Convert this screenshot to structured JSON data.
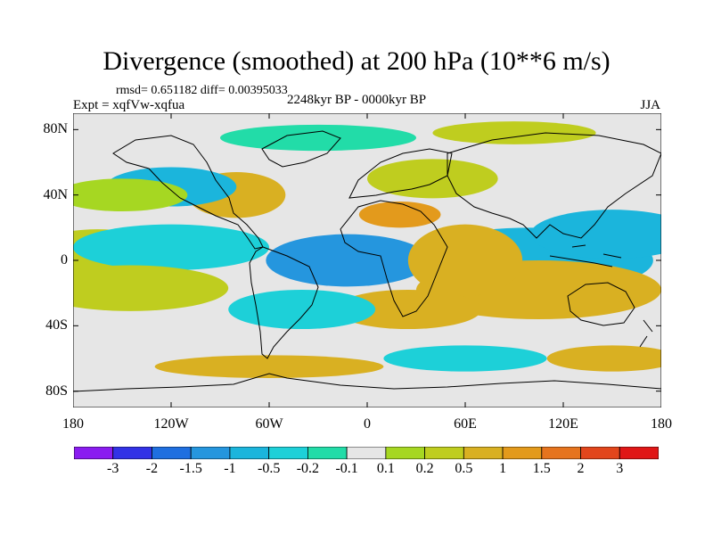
{
  "title": "Divergence (smoothed) at 200 hPa (10**6 m/s)",
  "stats": "rmsd= 0.651182  diff= 0.00395033",
  "experiment": "Expt = xqfVw-xqfua",
  "period": "2248kyr BP - 0000kyr BP",
  "season": "JJA",
  "map": {
    "projection": "cylindrical equidistant",
    "lon_range": [
      -180,
      180
    ],
    "lat_range": [
      -90,
      90
    ],
    "lon_ticks": [
      {
        "value": -180,
        "label": "180"
      },
      {
        "value": -120,
        "label": "120W"
      },
      {
        "value": -60,
        "label": "60W"
      },
      {
        "value": 0,
        "label": "0"
      },
      {
        "value": 60,
        "label": "60E"
      },
      {
        "value": 120,
        "label": "120E"
      },
      {
        "value": 180,
        "label": "180"
      }
    ],
    "lat_ticks": [
      {
        "value": 80,
        "label": "80N"
      },
      {
        "value": 40,
        "label": "40N"
      },
      {
        "value": 0,
        "label": "0"
      },
      {
        "value": -40,
        "label": "40S"
      },
      {
        "value": -80,
        "label": "80S"
      }
    ]
  },
  "colorbar": {
    "colors": [
      "#8a1cf0",
      "#3232e6",
      "#1f6fe0",
      "#2596de",
      "#1bb5dc",
      "#1dd0d8",
      "#22dca8",
      "#e6e6e6",
      "#a6d722",
      "#bfcd1f",
      "#d9b022",
      "#e39a1c",
      "#e6741e",
      "#e2461c",
      "#e01616"
    ],
    "labels": [
      "-3",
      "-2",
      "-1.5",
      "-1",
      "-0.5",
      "-0.2",
      "-0.1",
      "0.1",
      "0.2",
      "0.5",
      "1",
      "1.5",
      "2",
      "3"
    ]
  },
  "field_blobs": [
    {
      "lon": -15,
      "lat": 2,
      "rlon": 25,
      "rlat": 7,
      "level": 0
    },
    {
      "lon": -18,
      "lat": 1,
      "rlon": 35,
      "rlat": 11,
      "level": 1
    },
    {
      "lon": -12,
      "lat": 0,
      "rlon": 50,
      "rlat": 16,
      "level": 3
    },
    {
      "lon": 95,
      "lat": -5,
      "rlon": 28,
      "rlat": 8,
      "level": 0
    },
    {
      "lon": 90,
      "lat": -2,
      "rlon": 45,
      "rlat": 12,
      "level": 2
    },
    {
      "lon": 100,
      "lat": 0,
      "rlon": 75,
      "rlat": 20,
      "level": 4
    },
    {
      "lon": 110,
      "lat": -20,
      "rlon": 50,
      "rlat": 10,
      "level": 13
    },
    {
      "lon": 105,
      "lat": -18,
      "rlon": 75,
      "rlat": 18,
      "level": 10
    },
    {
      "lon": 55,
      "lat": 5,
      "rlon": 20,
      "rlat": 12,
      "level": 13
    },
    {
      "lon": 60,
      "lat": 0,
      "rlon": 35,
      "rlat": 22,
      "level": 10
    },
    {
      "lon": -175,
      "lat": 3,
      "rlon": 30,
      "rlat": 10,
      "level": 12
    },
    {
      "lon": -165,
      "lat": 3,
      "rlon": 45,
      "rlat": 16,
      "level": 9
    },
    {
      "lon": -140,
      "lat": 7,
      "rlon": 30,
      "rlat": 8,
      "level": 3
    },
    {
      "lon": -120,
      "lat": 8,
      "rlon": 60,
      "rlat": 14,
      "level": 5
    },
    {
      "lon": 140,
      "lat": 18,
      "rlon": 30,
      "rlat": 8,
      "level": 2
    },
    {
      "lon": 150,
      "lat": 16,
      "rlon": 50,
      "rlat": 15,
      "level": 4
    },
    {
      "lon": -150,
      "lat": -18,
      "rlon": 45,
      "rlat": 8,
      "level": 12
    },
    {
      "lon": -145,
      "lat": -17,
      "rlon": 60,
      "rlat": 14,
      "level": 9
    },
    {
      "lon": 25,
      "lat": -30,
      "rlon": 45,
      "rlat": 12,
      "level": 10
    },
    {
      "lon": -40,
      "lat": -30,
      "rlon": 45,
      "rlat": 12,
      "level": 5
    },
    {
      "lon": -80,
      "lat": 40,
      "rlon": 30,
      "rlat": 14,
      "level": 10
    },
    {
      "lon": -120,
      "lat": 45,
      "rlon": 40,
      "rlat": 12,
      "level": 4
    },
    {
      "lon": 40,
      "lat": 50,
      "rlon": 40,
      "rlat": 12,
      "level": 9
    },
    {
      "lon": 20,
      "lat": 28,
      "rlon": 25,
      "rlat": 8,
      "level": 11
    },
    {
      "lon": -30,
      "lat": 75,
      "rlon": 60,
      "rlat": 8,
      "level": 6
    },
    {
      "lon": 90,
      "lat": 78,
      "rlon": 50,
      "rlat": 7,
      "level": 9
    },
    {
      "lon": -60,
      "lat": -65,
      "rlon": 70,
      "rlat": 7,
      "level": 10
    },
    {
      "lon": 60,
      "lat": -60,
      "rlon": 50,
      "rlat": 8,
      "level": 5
    },
    {
      "lon": 150,
      "lat": -60,
      "rlon": 40,
      "rlat": 8,
      "level": 10
    },
    {
      "lon": -150,
      "lat": 40,
      "rlon": 40,
      "rlat": 10,
      "level": 8
    }
  ]
}
